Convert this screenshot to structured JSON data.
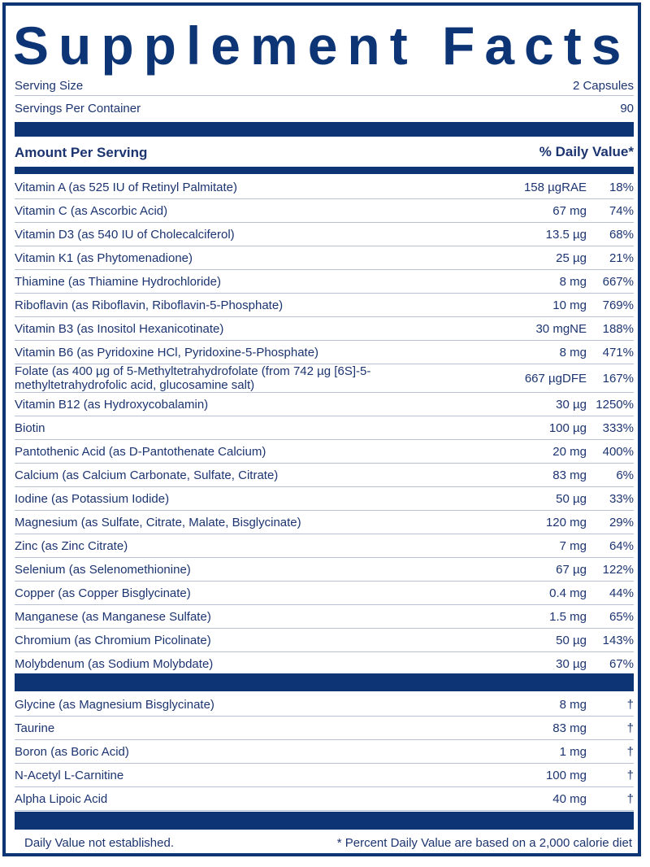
{
  "title": "Supplement Facts",
  "serving": {
    "size_label": "Serving Size",
    "size_value": "2 Capsules",
    "per_container_label": "Servings Per Container",
    "per_container_value": "90"
  },
  "header": {
    "amount": "Amount Per Serving",
    "dv": "% Daily Value*"
  },
  "nutrients": [
    {
      "name": "Vitamin A (as 525 IU of Retinyl Palmitate)",
      "amount": "158 µgRAE",
      "dv": "18%"
    },
    {
      "name": "Vitamin C (as Ascorbic Acid)",
      "amount": "67 mg",
      "dv": "74%"
    },
    {
      "name": "Vitamin D3 (as 540 IU of Cholecalciferol)",
      "amount": "13.5 µg",
      "dv": "68%"
    },
    {
      "name": "Vitamin K1 (as Phytomenadione)",
      "amount": "25 µg",
      "dv": "21%"
    },
    {
      "name": "Thiamine (as Thiamine Hydrochloride)",
      "amount": "8 mg",
      "dv": "667%"
    },
    {
      "name": "Riboflavin (as Riboflavin, Riboflavin-5-Phosphate)",
      "amount": "10 mg",
      "dv": "769%"
    },
    {
      "name": "Vitamin B3 (as Inositol Hexanicotinate)",
      "amount": "30 mgNE",
      "dv": "188%"
    },
    {
      "name": "Vitamin B6 (as Pyridoxine HCl, Pyridoxine-5-Phosphate)",
      "amount": "8 mg",
      "dv": "471%"
    },
    {
      "name": "Folate (as 400 µg of 5-Methyltetrahydrofolate (from 742 µg [6S]-5-methyltetrahydrofolic acid, glucosamine salt)",
      "amount": "667 µgDFE",
      "dv": "167%"
    },
    {
      "name": "Vitamin B12 (as Hydroxycobalamin)",
      "amount": "30 µg",
      "dv": "1250%"
    },
    {
      "name": "Biotin",
      "amount": "100 µg",
      "dv": "333%"
    },
    {
      "name": "Pantothenic Acid (as D-Pantothenate Calcium)",
      "amount": "20 mg",
      "dv": "400%"
    },
    {
      "name": "Calcium (as Calcium Carbonate, Sulfate, Citrate)",
      "amount": "83 mg",
      "dv": "6%"
    },
    {
      "name": "Iodine (as Potassium Iodide)",
      "amount": "50 µg",
      "dv": "33%"
    },
    {
      "name": "Magnesium (as Sulfate, Citrate, Malate, Bisglycinate)",
      "amount": "120 mg",
      "dv": "29%"
    },
    {
      "name": "Zinc (as Zinc Citrate)",
      "amount": "7 mg",
      "dv": "64%"
    },
    {
      "name": "Selenium (as Selenomethionine)",
      "amount": "67 µg",
      "dv": "122%"
    },
    {
      "name": "Copper (as Copper Bisglycinate)",
      "amount": "0.4 mg",
      "dv": "44%"
    },
    {
      "name": "Manganese (as Manganese Sulfate)",
      "amount": "1.5 mg",
      "dv": "65%"
    },
    {
      "name": "Chromium (as Chromium Picolinate)",
      "amount": "50 µg",
      "dv": "143%"
    },
    {
      "name": "Molybdenum (as Sodium Molybdate)",
      "amount": "30 µg",
      "dv": "67%"
    }
  ],
  "others": [
    {
      "name": "Glycine (as Magnesium Bisglycinate)",
      "amount": "8 mg",
      "dv": "†"
    },
    {
      "name": "Taurine",
      "amount": "83 mg",
      "dv": "†"
    },
    {
      "name": "Boron (as Boric Acid)",
      "amount": "1 mg",
      "dv": "†"
    },
    {
      "name": "N-Acetyl L-Carnitine",
      "amount": "100 mg",
      "dv": "†"
    },
    {
      "name": "Alpha Lipoic Acid",
      "amount": "40 mg",
      "dv": "†"
    }
  ],
  "footer": {
    "left": "Daily Value not established.",
    "right": "* Percent Daily Value are based on a 2,000 calorie diet"
  },
  "colors": {
    "navy": "#0d3576",
    "text": "#1c3470"
  }
}
